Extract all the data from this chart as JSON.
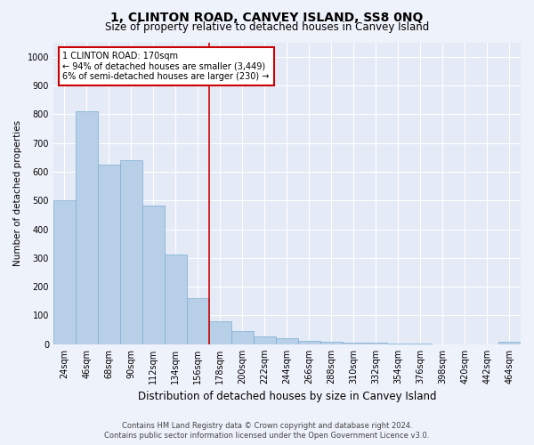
{
  "title": "1, CLINTON ROAD, CANVEY ISLAND, SS8 0NQ",
  "subtitle": "Size of property relative to detached houses in Canvey Island",
  "xlabel": "Distribution of detached houses by size in Canvey Island",
  "ylabel": "Number of detached properties",
  "footer_line1": "Contains HM Land Registry data © Crown copyright and database right 2024.",
  "footer_line2": "Contains public sector information licensed under the Open Government Licence v3.0.",
  "bin_labels": [
    "24sqm",
    "46sqm",
    "68sqm",
    "90sqm",
    "112sqm",
    "134sqm",
    "156sqm",
    "178sqm",
    "200sqm",
    "222sqm",
    "244sqm",
    "266sqm",
    "288sqm",
    "310sqm",
    "332sqm",
    "354sqm",
    "376sqm",
    "398sqm",
    "420sqm",
    "442sqm",
    "464sqm"
  ],
  "bar_values": [
    500,
    810,
    625,
    640,
    483,
    313,
    160,
    80,
    47,
    27,
    22,
    13,
    10,
    7,
    5,
    3,
    3,
    0,
    0,
    0,
    10
  ],
  "bar_color": "#b8cfe8",
  "bar_edge_color": "#7aadd4",
  "vline_x_index": 7,
  "vline_color": "#cc0000",
  "annotation_text": "1 CLINTON ROAD: 170sqm\n← 94% of detached houses are smaller (3,449)\n6% of semi-detached houses are larger (230) →",
  "annotation_box_color": "white",
  "annotation_box_edge": "#cc0000",
  "ylim": [
    0,
    1050
  ],
  "yticks": [
    0,
    100,
    200,
    300,
    400,
    500,
    600,
    700,
    800,
    900,
    1000
  ],
  "background_color": "#eef2fa",
  "plot_bg_color": "#e4eaf6",
  "grid_color": "#ffffff",
  "title_fontsize": 10,
  "subtitle_fontsize": 8.5,
  "xlabel_fontsize": 8.5,
  "ylabel_fontsize": 7.5,
  "tick_fontsize": 7,
  "annot_fontsize": 7,
  "footer_fontsize": 6
}
